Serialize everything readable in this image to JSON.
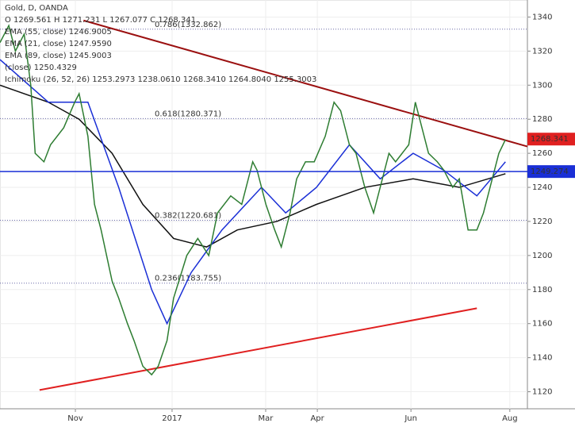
{
  "chart_data": {
    "type": "line",
    "legend_lines": [
      "Gold, D, OANDA",
      "O 1269.561 H 1271.231 L 1267.077 C 1268.341",
      "EMA (55, close)  1246.9005",
      "EMA (21, close)  1247.9590",
      "EMA (89, close)  1245.9003",
      "(close)  1250.4329",
      "Ichimoku (26, 52, 26)  1253.2973  1238.0610  1268.3410  1264.8040  1255.3003"
    ],
    "x": [
      0,
      4,
      7,
      11,
      14,
      16,
      20,
      23,
      29,
      34,
      36,
      40,
      43,
      46,
      51,
      54,
      58,
      61,
      65,
      69,
      72,
      76,
      79,
      85,
      90,
      95,
      99,
      105,
      110,
      115,
      117,
      121,
      125,
      128,
      132,
      135,
      139,
      143,
      148,
      152,
      155,
      159,
      162,
      166,
      170,
      173,
      177,
      180,
      186,
      189,
      191,
      195,
      199,
      202,
      206,
      209,
      213,
      217,
      220,
      224,
      227,
      230
    ],
    "series": [
      {
        "name": "Gold",
        "color": "#2e7d32",
        "values": [
          1325,
          1335,
          1320,
          1330,
          1300,
          1260,
          1255,
          1265,
          1275,
          1290,
          1295,
          1270,
          1230,
          1215,
          1185,
          1175,
          1160,
          1150,
          1135,
          1130,
          1135,
          1150,
          1175,
          1200,
          1210,
          1200,
          1225,
          1235,
          1230,
          1255,
          1250,
          1230,
          1215,
          1205,
          1225,
          1245,
          1255,
          1255,
          1270,
          1290,
          1285,
          1265,
          1260,
          1240,
          1225,
          1240,
          1260,
          1255,
          1265,
          1290,
          1280,
          1260,
          1255,
          1250,
          1240,
          1245,
          1215,
          1215,
          1225,
          1245,
          1260,
          1268
        ]
      }
    ],
    "overlays": [
      {
        "color": "#111111",
        "x": [
          0,
          22,
          36,
          51,
          65,
          79,
          94,
          108,
          126,
          144,
          166,
          188,
          209,
          230
        ],
        "values": [
          1300,
          1290,
          1280,
          1260,
          1230,
          1210,
          1205,
          1215,
          1220,
          1230,
          1240,
          1245,
          1240,
          1248
        ]
      },
      {
        "color": "#1a2fd6",
        "x": [
          0,
          22,
          40,
          54,
          69,
          76,
          87,
          101,
          119,
          130,
          144,
          159,
          173,
          188,
          202,
          217,
          230
        ],
        "values": [
          1315,
          1290,
          1290,
          1240,
          1180,
          1160,
          1190,
          1215,
          1240,
          1225,
          1240,
          1265,
          1245,
          1260,
          1250,
          1235,
          1255
        ]
      }
    ],
    "trendlines": [
      {
        "color": "#e02020",
        "x": [
          18,
          217
        ],
        "values": [
          1121,
          1169
        ]
      },
      {
        "color": "#9b1010",
        "x": [
          38,
          240
        ],
        "values": [
          1338,
          1264
        ]
      }
    ],
    "fib_levels": [
      {
        "value": 1332.862,
        "label": "0.786(1332.862)"
      },
      {
        "value": 1280.371,
        "label": "0.618(1280.371)"
      },
      {
        "value": 1220.681,
        "label": "0.382(1220.681)"
      },
      {
        "value": 1183.755,
        "label": "0.236(1183.755)"
      }
    ],
    "hline": {
      "value": 1249.274,
      "label": "1249.274",
      "color": "#1a2fd6"
    },
    "last_price": {
      "value": 1268.341,
      "label": "1268.341",
      "color": "#e02020"
    },
    "xlim": [
      0,
      240
    ],
    "ylim": [
      1110,
      1350
    ],
    "xticks": [
      {
        "value": 34.3,
        "label": "Nov"
      },
      {
        "value": 78.3,
        "label": "2017"
      },
      {
        "value": 120.9,
        "label": "Mar"
      },
      {
        "value": 144.4,
        "label": "Apr"
      },
      {
        "value": 187,
        "label": "Jun"
      },
      {
        "value": 232,
        "label": "Aug"
      }
    ],
    "yticks": [
      1120,
      1140,
      1160,
      1180,
      1200,
      1220,
      1240,
      1260,
      1280,
      1300,
      1320,
      1340
    ]
  }
}
